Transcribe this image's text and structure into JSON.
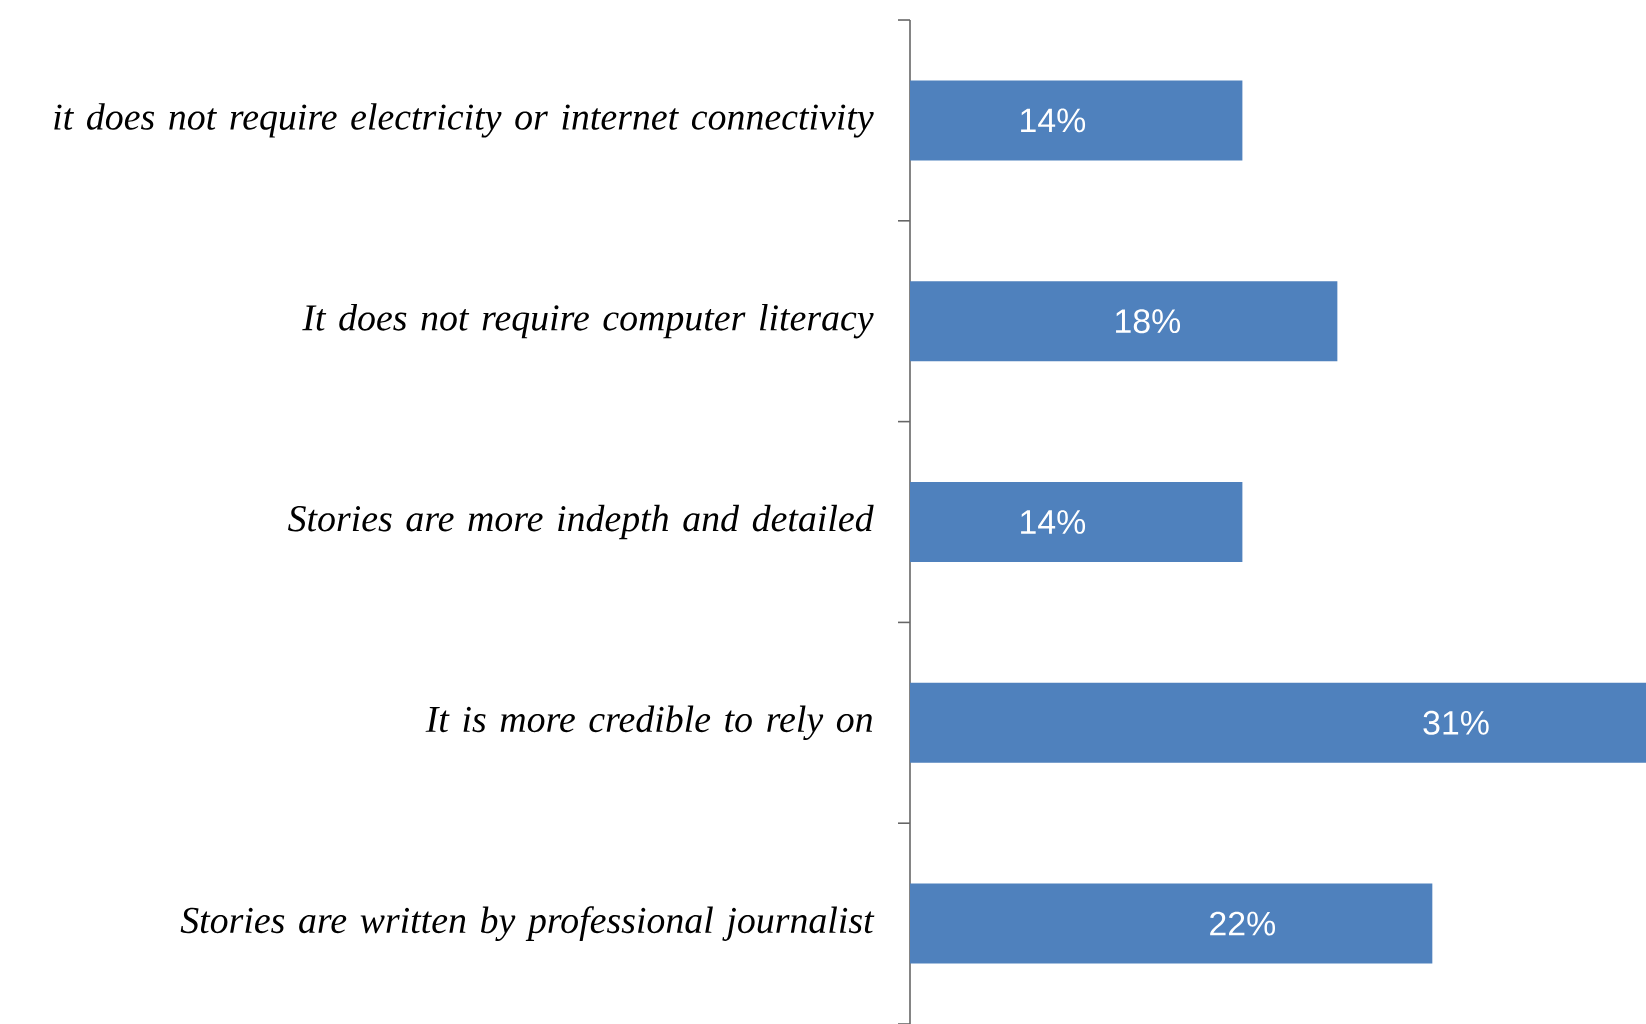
{
  "chart_data": {
    "type": "bar",
    "orientation": "horizontal",
    "color": "#4f81bd",
    "categories": [
      "it does not require electricity or internet connectivity",
      "It does not require computer literacy",
      "Stories are more indepth and detailed",
      "It is more credible to rely on",
      "Stories are written by professional journalist"
    ],
    "values": [
      14,
      18,
      14,
      31,
      22
    ],
    "value_labels": [
      "14%",
      "18%",
      "14%",
      "31%",
      "22%"
    ]
  }
}
